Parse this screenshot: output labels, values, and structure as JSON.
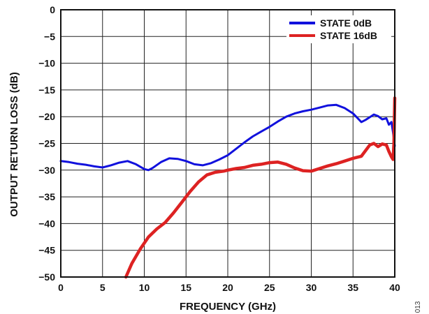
{
  "chart_data": {
    "type": "line",
    "xlabel": "FREQUENCY (GHz)",
    "ylabel": "OUTPUT RETURN LOSS (dB)",
    "xlim": [
      0,
      40
    ],
    "ylim": [
      -50,
      0
    ],
    "xticks": [
      0,
      5,
      10,
      15,
      20,
      25,
      30,
      35,
      40
    ],
    "yticks": [
      0,
      -5,
      -10,
      -15,
      -20,
      -25,
      -30,
      -35,
      -40,
      -45,
      -50
    ],
    "grid": true,
    "legend_position": "top-right",
    "figure_id": "013",
    "series": [
      {
        "name": "STATE 0dB",
        "color": "#1111dd",
        "points": [
          [
            0,
            -28.3
          ],
          [
            1,
            -28.5
          ],
          [
            2,
            -28.8
          ],
          [
            3,
            -29.0
          ],
          [
            4,
            -29.3
          ],
          [
            5,
            -29.5
          ],
          [
            6,
            -29.1
          ],
          [
            7,
            -28.6
          ],
          [
            8,
            -28.3
          ],
          [
            9,
            -28.9
          ],
          [
            10,
            -29.8
          ],
          [
            10.5,
            -30.0
          ],
          [
            11,
            -29.6
          ],
          [
            12,
            -28.5
          ],
          [
            13,
            -27.8
          ],
          [
            14,
            -27.9
          ],
          [
            15,
            -28.3
          ],
          [
            16,
            -28.9
          ],
          [
            17,
            -29.1
          ],
          [
            18,
            -28.7
          ],
          [
            19,
            -28.0
          ],
          [
            20,
            -27.2
          ],
          [
            21,
            -26.0
          ],
          [
            22,
            -24.8
          ],
          [
            23,
            -23.7
          ],
          [
            24,
            -22.8
          ],
          [
            25,
            -21.9
          ],
          [
            26,
            -20.9
          ],
          [
            27,
            -20.0
          ],
          [
            28,
            -19.4
          ],
          [
            29,
            -19.0
          ],
          [
            30,
            -18.7
          ],
          [
            31,
            -18.3
          ],
          [
            32,
            -17.9
          ],
          [
            33,
            -17.8
          ],
          [
            34,
            -18.4
          ],
          [
            35,
            -19.4
          ],
          [
            36,
            -21.0
          ],
          [
            36.5,
            -20.6
          ],
          [
            37,
            -20.1
          ],
          [
            37.5,
            -19.6
          ],
          [
            38,
            -19.9
          ],
          [
            38.5,
            -20.5
          ],
          [
            39,
            -20.3
          ],
          [
            39.3,
            -21.5
          ],
          [
            39.6,
            -21.0
          ],
          [
            39.8,
            -23.0
          ],
          [
            40,
            -25.5
          ]
        ]
      },
      {
        "name": "STATE 16dB",
        "color": "#dd2222",
        "points": [
          [
            7.8,
            -50.0
          ],
          [
            8.5,
            -47.5
          ],
          [
            9.5,
            -44.8
          ],
          [
            10.5,
            -42.5
          ],
          [
            11.5,
            -41.0
          ],
          [
            12.5,
            -39.8
          ],
          [
            13.5,
            -38.0
          ],
          [
            14.5,
            -36.0
          ],
          [
            15.5,
            -34.0
          ],
          [
            16.5,
            -32.2
          ],
          [
            17.5,
            -30.9
          ],
          [
            18.5,
            -30.4
          ],
          [
            19.5,
            -30.2
          ],
          [
            20,
            -30.0
          ],
          [
            21,
            -29.7
          ],
          [
            22,
            -29.5
          ],
          [
            23,
            -29.1
          ],
          [
            24,
            -28.9
          ],
          [
            25,
            -28.6
          ],
          [
            26,
            -28.5
          ],
          [
            27,
            -28.9
          ],
          [
            28,
            -29.6
          ],
          [
            29,
            -30.1
          ],
          [
            30,
            -30.2
          ],
          [
            31,
            -29.7
          ],
          [
            32,
            -29.2
          ],
          [
            33,
            -28.8
          ],
          [
            34,
            -28.3
          ],
          [
            35,
            -27.8
          ],
          [
            36,
            -27.4
          ],
          [
            37,
            -25.3
          ],
          [
            37.5,
            -25.0
          ],
          [
            38,
            -25.6
          ],
          [
            38.5,
            -25.1
          ],
          [
            39,
            -25.3
          ],
          [
            39.3,
            -26.5
          ],
          [
            39.6,
            -27.5
          ],
          [
            39.8,
            -28.0
          ],
          [
            39.9,
            -25.0
          ],
          [
            40,
            -16.5
          ]
        ]
      }
    ]
  }
}
